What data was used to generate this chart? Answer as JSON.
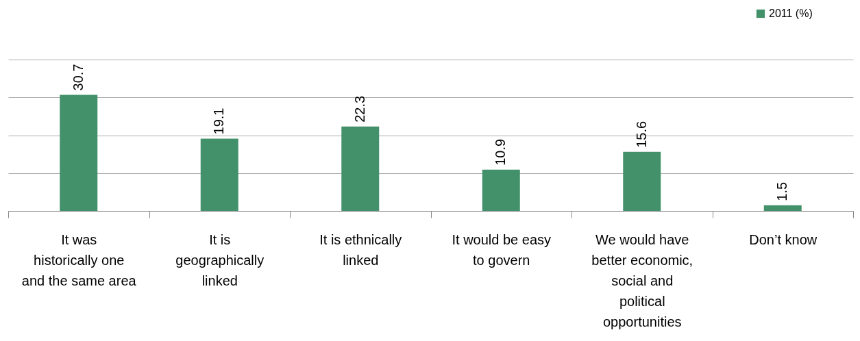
{
  "chart_data": {
    "type": "bar",
    "categories": [
      "It was historically one and the same area",
      "It is geographically linked",
      "It is ethnically linked",
      "It would be easy to govern",
      "We would have better economic, social and political opportunities",
      "Don’t know"
    ],
    "series": [
      {
        "name": "2011 (%)",
        "color": "#43916b",
        "values": [
          30.7,
          19.1,
          22.3,
          10.9,
          15.6,
          1.5
        ]
      }
    ],
    "ylim": [
      0,
      40
    ],
    "yticks": [
      {
        "value": 0,
        "label": null
      },
      {
        "value": 10,
        "label": null
      },
      {
        "value": 20,
        "label": null
      },
      {
        "value": 30,
        "label": null
      },
      {
        "value": 40,
        "label": null
      }
    ],
    "grid": "y",
    "legend": "top right",
    "data_labels": true,
    "tick_labels": "x"
  }
}
